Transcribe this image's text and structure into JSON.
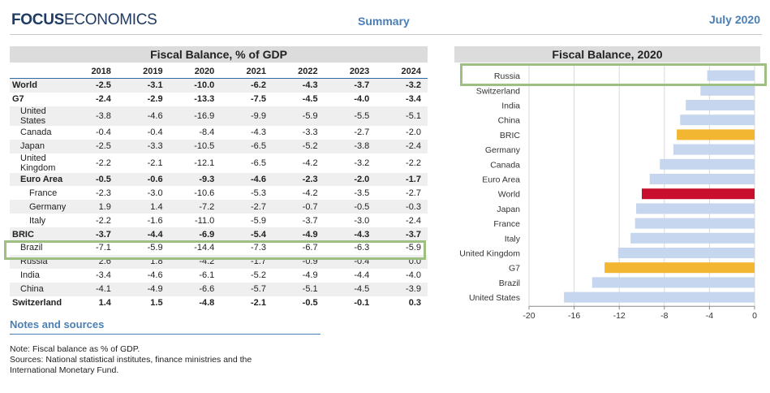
{
  "header": {
    "logo_bold": "FOCUS",
    "logo_light": "ECONOMICS",
    "section": "Summary",
    "date": "July 2020"
  },
  "table": {
    "title": "Fiscal Balance, % of GDP",
    "columns": [
      "2018",
      "2019",
      "2020",
      "2021",
      "2022",
      "2023",
      "2024"
    ],
    "rows": [
      {
        "label": "World",
        "values": [
          "-2.5",
          "-3.1",
          "-10.0",
          "-6.2",
          "-4.3",
          "-3.7",
          "-3.2"
        ]
      },
      {
        "label": "G7",
        "values": [
          "-2.4",
          "-2.9",
          "-13.3",
          "-7.5",
          "-4.5",
          "-4.0",
          "-3.4"
        ]
      },
      {
        "label": "United States",
        "values": [
          "-3.8",
          "-4.6",
          "-16.9",
          "-9.9",
          "-5.9",
          "-5.5",
          "-5.1"
        ]
      },
      {
        "label": "Canada",
        "values": [
          "-0.4",
          "-0.4",
          "-8.4",
          "-4.3",
          "-3.3",
          "-2.7",
          "-2.0"
        ]
      },
      {
        "label": "Japan",
        "values": [
          "-2.5",
          "-3.3",
          "-10.5",
          "-6.5",
          "-5.2",
          "-3.8",
          "-2.4"
        ]
      },
      {
        "label": "United Kingdom",
        "values": [
          "-2.2",
          "-2.1",
          "-12.1",
          "-6.5",
          "-4.2",
          "-3.2",
          "-2.2"
        ]
      },
      {
        "label": "Euro Area",
        "values": [
          "-0.5",
          "-0.6",
          "-9.3",
          "-4.6",
          "-2.3",
          "-2.0",
          "-1.7"
        ]
      },
      {
        "label": "France",
        "values": [
          "-2.3",
          "-3.0",
          "-10.6",
          "-5.3",
          "-4.2",
          "-3.5",
          "-2.7"
        ]
      },
      {
        "label": "Germany",
        "values": [
          "1.9",
          "1.4",
          "-7.2",
          "-2.7",
          "-0.7",
          "-0.5",
          "-0.3"
        ]
      },
      {
        "label": "Italy",
        "values": [
          "-2.2",
          "-1.6",
          "-11.0",
          "-5.9",
          "-3.7",
          "-3.0",
          "-2.4"
        ]
      },
      {
        "label": "BRIC",
        "values": [
          "-3.7",
          "-4.4",
          "-6.9",
          "-5.4",
          "-4.9",
          "-4.3",
          "-3.7"
        ]
      },
      {
        "label": "Brazil",
        "values": [
          "-7.1",
          "-5.9",
          "-14.4",
          "-7.3",
          "-6.7",
          "-6.3",
          "-5.9"
        ]
      },
      {
        "label": "Russia",
        "values": [
          "2.6",
          "1.8",
          "-4.2",
          "-1.7",
          "-0.9",
          "-0.4",
          "0.0"
        ]
      },
      {
        "label": "India",
        "values": [
          "-3.4",
          "-4.6",
          "-6.1",
          "-5.2",
          "-4.9",
          "-4.4",
          "-4.0"
        ]
      },
      {
        "label": "China",
        "values": [
          "-4.1",
          "-4.9",
          "-6.6",
          "-5.7",
          "-5.1",
          "-4.5",
          "-3.9"
        ]
      },
      {
        "label": "Switzerland",
        "values": [
          "1.4",
          "1.5",
          "-4.8",
          "-2.1",
          "-0.5",
          "-0.1",
          "0.3"
        ]
      }
    ]
  },
  "notes": {
    "title": "Notes and sources",
    "lines": [
      "Note: Fiscal balance as % of GDP.",
      "Sources: National statistical institutes, finance ministries and the",
      "International Monetary Fund."
    ]
  },
  "chart_data": {
    "type": "bar",
    "orientation": "horizontal",
    "title": "Fiscal Balance, 2020",
    "categories": [
      "Russia",
      "Switzerland",
      "India",
      "China",
      "BRIC",
      "Germany",
      "Canada",
      "Euro Area",
      "World",
      "Japan",
      "France",
      "Italy",
      "United Kingdom",
      "G7",
      "Brazil",
      "United States"
    ],
    "values": [
      -4.2,
      -4.8,
      -6.1,
      -6.6,
      -6.9,
      -7.2,
      -8.4,
      -9.3,
      -10.0,
      -10.5,
      -10.6,
      -11.0,
      -12.1,
      -13.3,
      -14.4,
      -16.9
    ],
    "bar_colors": {
      "default": "#c5d6ee",
      "BRIC": "#f2b632",
      "G7": "#f2b632",
      "World": "#c8102e"
    },
    "xlim": [
      -20,
      0
    ],
    "xticks": [
      "-20",
      "-16",
      "-12",
      "-8",
      "-4",
      "0"
    ],
    "grid": true,
    "highlight": "Russia"
  }
}
